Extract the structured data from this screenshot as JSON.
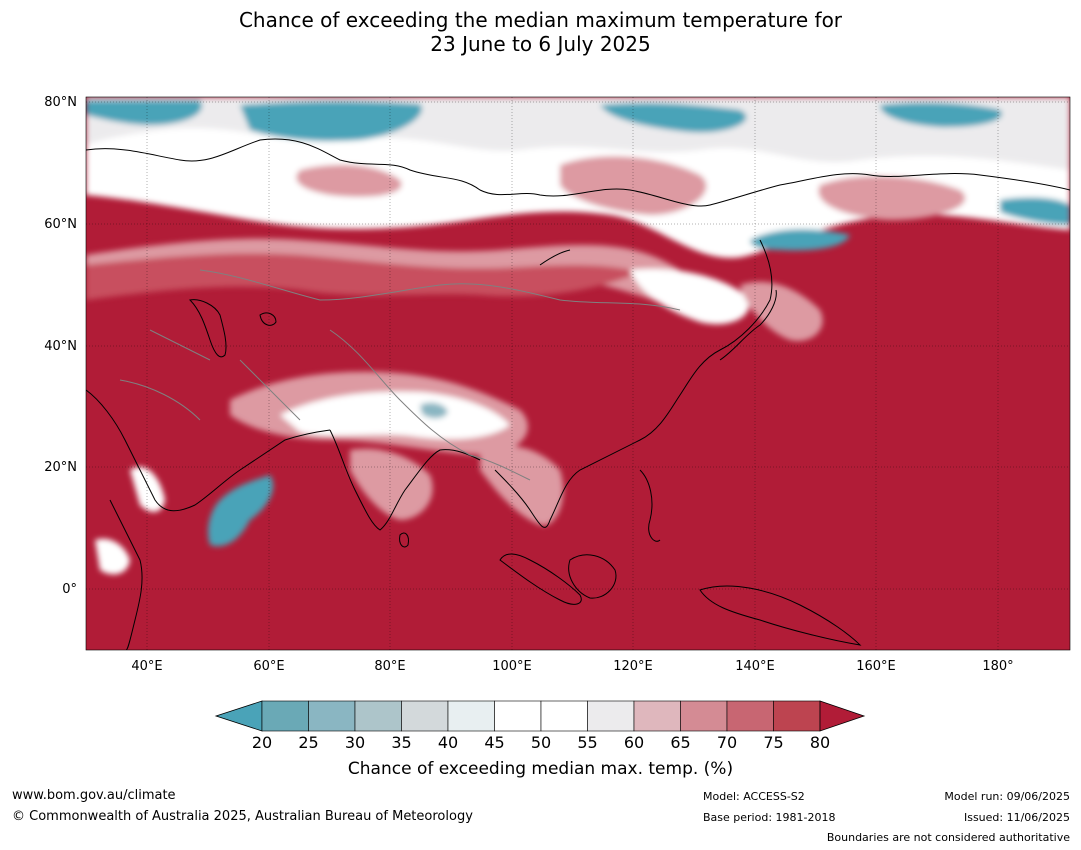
{
  "title": {
    "line1": "Chance of exceeding the median maximum temperature for",
    "line2": "23 June to 6 July 2025"
  },
  "map": {
    "lat_labels": [
      "80°N",
      "60°N",
      "40°N",
      "20°N",
      "0°"
    ],
    "lon_labels": [
      "40°E",
      "60°E",
      "80°E",
      "100°E",
      "120°E",
      "140°E",
      "160°E",
      "180°"
    ],
    "colors": {
      "very_high": "#b11c37",
      "high": "#c8505e",
      "moderate_high": "#dd9aa2",
      "near_median": "#ecebed",
      "neutral": "#ffffff",
      "low": "#a9c3c9",
      "very_low": "#4aa3b8",
      "coastline": "#000000",
      "border": "#808080"
    }
  },
  "colorbar": {
    "ticks": [
      "20",
      "25",
      "30",
      "35",
      "40",
      "45",
      "50",
      "55",
      "60",
      "65",
      "70",
      "75",
      "80"
    ],
    "colors": [
      "#4aa3b8",
      "#6aa9b6",
      "#8ab6c2",
      "#adc5ca",
      "#d3d9db",
      "#e8eff1",
      "#ffffff",
      "#ffffff",
      "#ecebed",
      "#dfb7bd",
      "#d48b94",
      "#c86672",
      "#bd4450",
      "#b11c37"
    ],
    "label": "Chance of exceeding median max. temp. (%)"
  },
  "footer": {
    "website": "www.bom.gov.au/climate",
    "copyright": "© Commonwealth of Australia 2025, Australian Bureau of Meteorology",
    "model": "Model: ACCESS-S2",
    "base_period": "Base period: 1981-2018",
    "model_run": "Model run: 09/06/2025",
    "issued": "Issued: 11/06/2025",
    "disclaimer": "Boundaries are not considered authoritative"
  }
}
